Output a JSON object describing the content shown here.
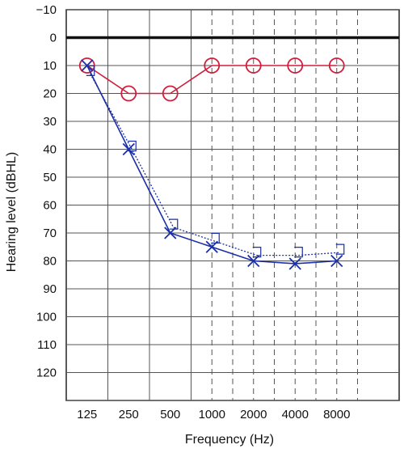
{
  "chart_data": {
    "type": "line",
    "title": "",
    "xlabel": "Frequency (Hz)",
    "ylabel": "Hearing level (dBHL)",
    "x_categories": [
      "125",
      "250",
      "500",
      "1000",
      "2000",
      "4000",
      "8000"
    ],
    "y_ticks": [
      -10,
      0,
      10,
      20,
      30,
      40,
      50,
      60,
      70,
      80,
      90,
      100,
      110,
      120
    ],
    "ylim": [
      -10,
      130
    ],
    "y_inverted": true,
    "grid": true,
    "reference_line_db": 0,
    "dashed_grid_after_x_index": 2,
    "series": [
      {
        "name": "",
        "symbol": "O",
        "color": "#d21e3c",
        "line_style": "solid",
        "values": [
          10,
          20,
          20,
          10,
          10,
          10,
          10
        ]
      },
      {
        "name": "",
        "symbol": "X",
        "color": "#1a2fa8",
        "line_style": "solid",
        "values": [
          10,
          40,
          70,
          75,
          80,
          81,
          80
        ]
      },
      {
        "name": "",
        "symbol": "]",
        "color": "#1a2fa8",
        "line_style": "dotted",
        "values": [
          13,
          40,
          68,
          73,
          78,
          78,
          77
        ]
      }
    ]
  }
}
